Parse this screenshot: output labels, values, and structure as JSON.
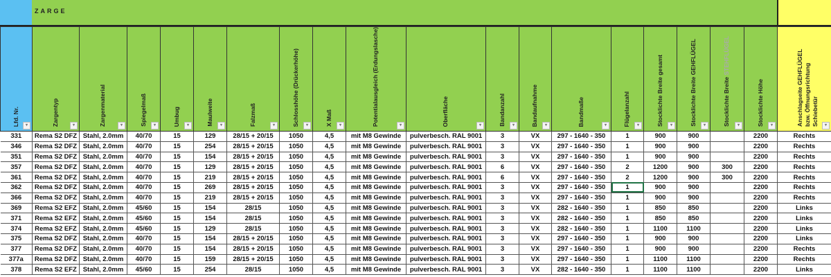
{
  "band": {
    "title": "ZARGE"
  },
  "colors": {
    "band_green": "#92d050",
    "id_blue": "#5bc0f2",
    "note_yellow": "#ffff66",
    "selection": "#217346"
  },
  "columns": [
    "Lfd. Nr.",
    "Zargentyp",
    "Zargenmaterial",
    "Spiegelmaß",
    "Umbug",
    "Maulweite",
    "Falzmaß",
    "Schlosshöhe (Drückerhöhe)",
    "X Maß",
    "Potentialausgleich (Erdungslasche)",
    "Oberfläche",
    "Bandanzahl",
    "Bandaufnahme",
    "Bandmaße",
    "Flügelanzahl",
    "Stocklichte Breite gesamt",
    "Stocklichte Breite GEHFLÜGEL",
    "Stocklichte Breite ",
    "Stocklichte Höhe",
    "Anschlagseite GEHFLÜGEL bzw. Öffnungsrichtung Schiebetür"
  ],
  "column_suffix_grey": "STEHFLÜGEL",
  "filter_icon": "dropdown-arrow",
  "selected_cell": {
    "row": 5,
    "column": "Flügelanzahl"
  },
  "rows": [
    [
      "331",
      "Rema S2 DFZ",
      "Stahl, 2.0mm",
      "40/70",
      "15",
      "129",
      "28/15 + 20/15",
      "1050",
      "4,5",
      "mit M8 Gewinde",
      "pulverbesch. RAL 9001",
      "3",
      "VX",
      "297 - 1640 - 350",
      "1",
      "900",
      "900",
      "",
      "2200",
      "Rechts"
    ],
    [
      "346",
      "Rema S2 DFZ",
      "Stahl, 2.0mm",
      "40/70",
      "15",
      "254",
      "28/15 + 20/15",
      "1050",
      "4,5",
      "mit M8 Gewinde",
      "pulverbesch. RAL 9001",
      "3",
      "VX",
      "297 - 1640 - 350",
      "1",
      "900",
      "900",
      "",
      "2200",
      "Rechts"
    ],
    [
      "351",
      "Rema S2 DFZ",
      "Stahl, 2.0mm",
      "40/70",
      "15",
      "154",
      "28/15 + 20/15",
      "1050",
      "4,5",
      "mit M8 Gewinde",
      "pulverbesch. RAL 9001",
      "3",
      "VX",
      "297 - 1640 - 350",
      "1",
      "900",
      "900",
      "",
      "2200",
      "Rechts"
    ],
    [
      "357",
      "Rema S2 DFZ",
      "Stahl, 2.0mm",
      "40/70",
      "15",
      "129",
      "28/15 + 20/15",
      "1050",
      "4,5",
      "mit M8 Gewinde",
      "pulverbesch. RAL 9001",
      "6",
      "VX",
      "297 - 1640 - 350",
      "2",
      "1200",
      "900",
      "300",
      "2200",
      "Rechts"
    ],
    [
      "361",
      "Rema S2 DFZ",
      "Stahl, 2.0mm",
      "40/70",
      "15",
      "219",
      "28/15 + 20/15",
      "1050",
      "4,5",
      "mit M8 Gewinde",
      "pulverbesch. RAL 9001",
      "6",
      "VX",
      "297 - 1640 - 350",
      "2",
      "1200",
      "900",
      "300",
      "2200",
      "Rechts"
    ],
    [
      "362",
      "Rema S2 DFZ",
      "Stahl, 2.0mm",
      "40/70",
      "15",
      "269",
      "28/15 + 20/15",
      "1050",
      "4,5",
      "mit M8 Gewinde",
      "pulverbesch. RAL 9001",
      "3",
      "VX",
      "297 - 1640 - 350",
      "1",
      "900",
      "900",
      "",
      "2200",
      "Rechts"
    ],
    [
      "366",
      "Rema S2 DFZ",
      "Stahl, 2.0mm",
      "40/70",
      "15",
      "219",
      "28/15 + 20/15",
      "1050",
      "4,5",
      "mit M8 Gewinde",
      "pulverbesch. RAL 9001",
      "3",
      "VX",
      "297 - 1640 - 350",
      "1",
      "900",
      "900",
      "",
      "2200",
      "Rechts"
    ],
    [
      "369",
      "Rema S2 EFZ",
      "Stahl, 2.0mm",
      "45/60",
      "15",
      "154",
      "28/15",
      "1050",
      "4,5",
      "mit M8 Gewinde",
      "pulverbesch. RAL 9001",
      "3",
      "VX",
      "282 - 1640 - 350",
      "1",
      "850",
      "850",
      "",
      "2200",
      "Links"
    ],
    [
      "371",
      "Rema S2 EFZ",
      "Stahl, 2.0mm",
      "45/60",
      "15",
      "154",
      "28/15",
      "1050",
      "4,5",
      "mit M8 Gewinde",
      "pulverbesch. RAL 9001",
      "3",
      "VX",
      "282 - 1640 - 350",
      "1",
      "850",
      "850",
      "",
      "2200",
      "Links"
    ],
    [
      "374",
      "Rema S2 EFZ",
      "Stahl, 2.0mm",
      "45/60",
      "15",
      "129",
      "28/15",
      "1050",
      "4,5",
      "mit M8 Gewinde",
      "pulverbesch. RAL 9001",
      "3",
      "VX",
      "282 - 1640 - 350",
      "1",
      "1100",
      "1100",
      "",
      "2200",
      "Links"
    ],
    [
      "375",
      "Rema S2 DFZ",
      "Stahl, 2.0mm",
      "40/70",
      "15",
      "154",
      "28/15 + 20/15",
      "1050",
      "4,5",
      "mit M8 Gewinde",
      "pulverbesch. RAL 9001",
      "3",
      "VX",
      "297 - 1640 - 350",
      "1",
      "900",
      "900",
      "",
      "2200",
      "Links"
    ],
    [
      "377",
      "Rema S2 DFZ",
      "Stahl, 2.0mm",
      "40/70",
      "15",
      "154",
      "28/15 + 20/15",
      "1050",
      "4,5",
      "mit M8 Gewinde",
      "pulverbesch. RAL 9001",
      "3",
      "VX",
      "297 - 1640 - 350",
      "1",
      "900",
      "900",
      "",
      "2200",
      "Rechts"
    ],
    [
      "377a",
      "Rema S2 DFZ",
      "Stahl, 2.0mm",
      "40/70",
      "15",
      "159",
      "28/15 + 20/15",
      "1050",
      "4,5",
      "mit M8 Gewinde",
      "pulverbesch. RAL 9001",
      "3",
      "VX",
      "297 - 1640 - 350",
      "1",
      "1100",
      "1100",
      "",
      "2200",
      "Rechts"
    ],
    [
      "378",
      "Rema S2 EFZ",
      "Stahl, 2.0mm",
      "45/60",
      "15",
      "254",
      "28/15",
      "1050",
      "4,5",
      "mit M8 Gewinde",
      "pulverbesch. RAL 9001",
      "3",
      "VX",
      "282 - 1640 - 350",
      "1",
      "1100",
      "1100",
      "",
      "2200",
      "Links"
    ]
  ]
}
